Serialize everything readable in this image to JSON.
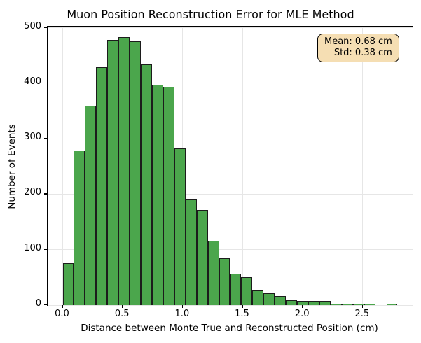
{
  "chart_data": {
    "type": "bar",
    "subtype": "histogram",
    "title": "Muon Position Reconstruction Error for MLE Method",
    "xlabel": "Distance between Monte True and Reconstructed Position (cm)",
    "ylabel": "Number of Events",
    "bin_start": 0.0,
    "bin_width": 0.093,
    "counts": [
      76,
      279,
      359,
      429,
      478,
      483,
      476,
      434,
      397,
      393,
      283,
      192,
      171,
      116,
      85,
      57,
      51,
      27,
      21,
      16,
      9,
      7,
      7,
      8,
      3,
      2,
      1,
      1,
      0,
      1
    ],
    "x_ticks": [
      0.0,
      0.5,
      1.0,
      1.5,
      2.0,
      2.5
    ],
    "y_ticks": [
      0,
      100,
      200,
      300,
      400,
      500
    ],
    "xlim": [
      -0.1255,
      2.9155
    ],
    "ylim": [
      0,
      502
    ],
    "grid": true,
    "legend_position": "none",
    "bar_color": "#4ba64c",
    "bar_edge_color": "#1c1c1c",
    "grid_color": "#e6e6e6",
    "annotation": {
      "lines": [
        "Mean: 0.68 cm",
        "Std: 0.38 cm"
      ],
      "bg_color": "#f5deb3",
      "border_color": "#000000"
    }
  }
}
